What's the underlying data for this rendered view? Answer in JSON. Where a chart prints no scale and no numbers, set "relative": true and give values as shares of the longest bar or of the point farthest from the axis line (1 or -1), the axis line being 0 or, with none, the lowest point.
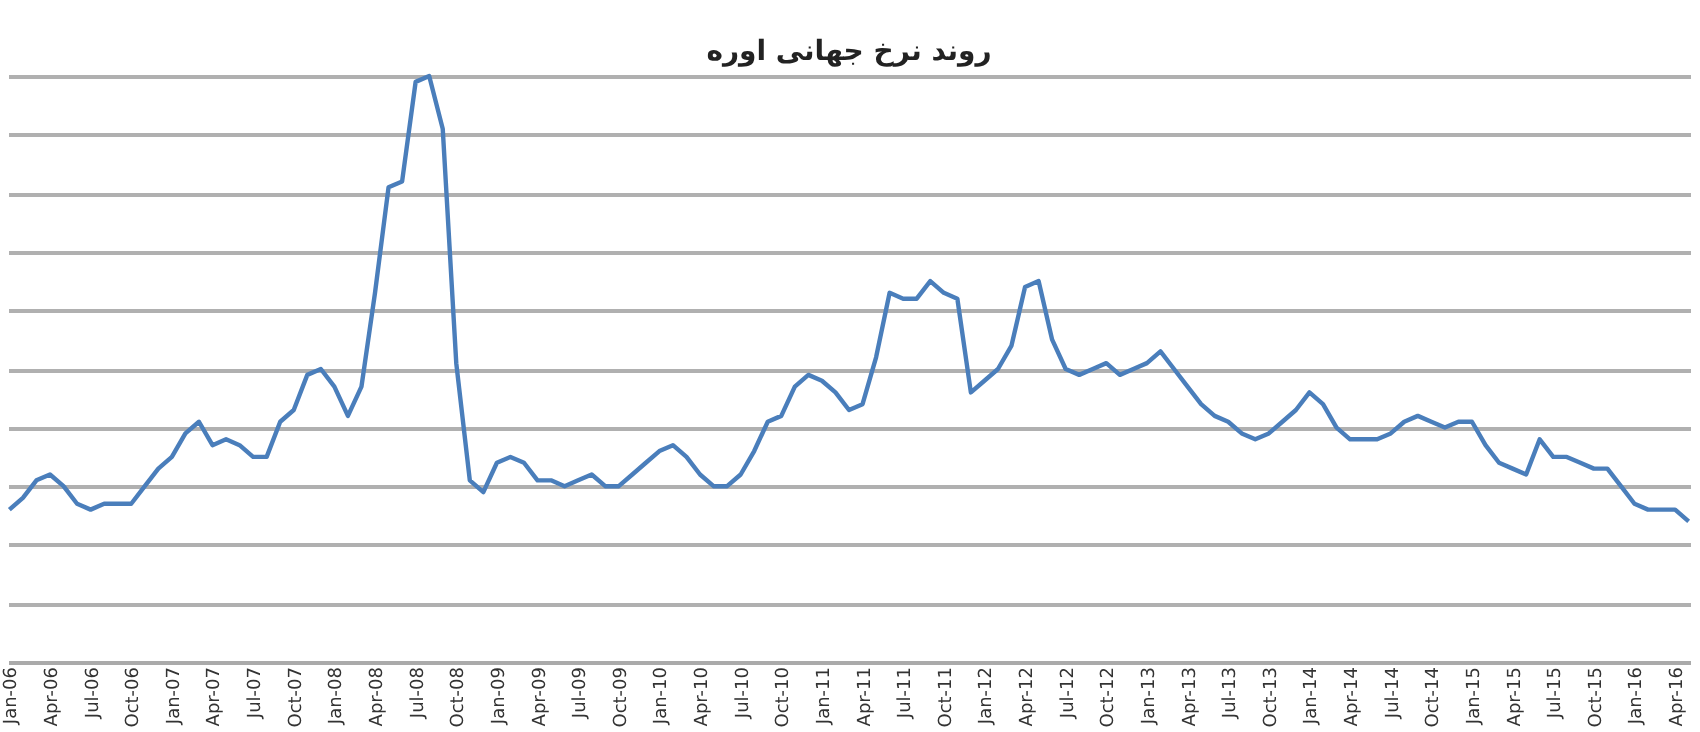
{
  "chart_data": {
    "type": "line",
    "title": "روند نرخ جهانی اوره",
    "relative": true,
    "grid": "y",
    "marker": "none",
    "line_style": "solid",
    "categories": [
      "Jan-06",
      null,
      null,
      "Apr-06",
      null,
      null,
      "Jul-06",
      null,
      null,
      "Oct-06",
      null,
      null,
      "Jan-07",
      null,
      null,
      "Apr-07",
      null,
      null,
      "Jul-07",
      null,
      null,
      "Oct-07",
      null,
      null,
      "Jan-08",
      null,
      null,
      "Apr-08",
      null,
      null,
      "Jul-08",
      null,
      null,
      "Oct-08",
      null,
      null,
      "Jan-09",
      null,
      null,
      "Apr-09",
      null,
      null,
      "Jul-09",
      null,
      null,
      "Oct-09",
      null,
      null,
      "Jan-10",
      null,
      null,
      "Apr-10",
      null,
      null,
      "Jul-10",
      null,
      null,
      "Oct-10",
      null,
      null,
      "Jan-11",
      null,
      null,
      "Apr-11",
      null,
      null,
      "Jul-11",
      null,
      null,
      "Oct-11",
      null,
      null,
      "Jan-12",
      null,
      null,
      "Apr-12",
      null,
      null,
      "Jul-12",
      null,
      null,
      "Oct-12",
      null,
      null,
      "Jan-13",
      null,
      null,
      "Apr-13",
      null,
      null,
      "Jul-13",
      null,
      null,
      "Oct-13",
      null,
      null,
      "Jan-14",
      null,
      null,
      "Apr-14",
      null,
      null,
      "Jul-14",
      null,
      null,
      "Oct-14",
      null,
      null,
      "Jan-15",
      null,
      null,
      "Apr-15",
      null,
      null,
      "Jul-15",
      null,
      null,
      "Oct-15",
      null,
      null,
      "Jan-16",
      null,
      null,
      "Apr-16",
      null
    ],
    "series": [
      {
        "color": "#4a7ebb",
        "values": [
          0.26,
          0.28,
          0.31,
          0.32,
          0.3,
          0.27,
          0.26,
          0.27,
          0.27,
          0.27,
          0.3,
          0.33,
          0.35,
          0.39,
          0.41,
          0.37,
          0.38,
          0.37,
          0.35,
          0.35,
          0.41,
          0.43,
          0.49,
          0.5,
          0.47,
          0.42,
          0.47,
          0.63,
          0.81,
          0.82,
          0.99,
          1,
          0.91,
          0.51,
          0.31,
          0.29,
          0.34,
          0.35,
          0.34,
          0.31,
          0.31,
          0.3,
          0.31,
          0.32,
          0.3,
          0.3,
          0.32,
          0.34,
          0.36,
          0.37,
          0.35,
          0.32,
          0.3,
          0.3,
          0.32,
          0.36,
          0.41,
          0.42,
          0.47,
          0.49,
          0.48,
          0.46,
          0.43,
          0.44,
          0.52,
          0.63,
          0.62,
          0.62,
          0.65,
          0.63,
          0.62,
          0.46,
          0.48,
          0.5,
          0.54,
          0.64,
          0.65,
          0.55,
          0.5,
          0.49,
          0.5,
          0.51,
          0.49,
          0.5,
          0.51,
          0.53,
          0.5,
          0.47,
          0.44,
          0.42,
          0.41,
          0.39,
          0.38,
          0.39,
          0.41,
          0.43,
          0.46,
          0.44,
          0.4,
          0.38,
          0.38,
          0.38,
          0.39,
          0.41,
          0.42,
          0.41,
          0.4,
          0.41,
          0.41,
          0.37,
          0.34,
          0.33,
          0.32,
          0.38,
          0.35,
          0.35,
          0.34,
          0.33,
          0.33,
          0.3,
          0.27,
          0.26,
          0.26,
          0.26,
          0.24
        ]
      }
    ]
  }
}
